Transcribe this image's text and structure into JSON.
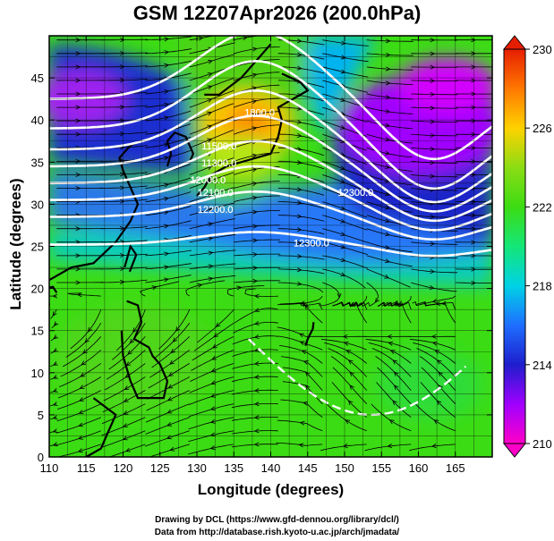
{
  "title": "GSM 12Z07Apr2026 (200.0hPa)",
  "xlabel": "Longitude (degrees)",
  "ylabel": "Latitude  (degrees)",
  "credits": {
    "line1": "Drawing by DCL (https://www.gfd-dennou.org/library/dcl/)",
    "line2": "Data from http://database.rish.kyoto-u.ac.jp/arch/jmadata/"
  },
  "map": {
    "lon_range": [
      110,
      170
    ],
    "lat_range": [
      0,
      50
    ],
    "lon_ticks": [
      110,
      115,
      120,
      125,
      130,
      135,
      140,
      145,
      150,
      155,
      160,
      165
    ],
    "lat_ticks": [
      0,
      5,
      10,
      15,
      20,
      25,
      30,
      35,
      40,
      45
    ],
    "grid": true
  },
  "colorbar": {
    "min": 210,
    "max": 230,
    "tick_labels": [
      "210",
      "214",
      "218",
      "222",
      "226",
      "230"
    ],
    "stops": [
      {
        "value": 210,
        "color": "#ff00c8"
      },
      {
        "value": 212,
        "color": "#a000ff"
      },
      {
        "value": 214,
        "color": "#1e1ecc"
      },
      {
        "value": 216,
        "color": "#1e6eff"
      },
      {
        "value": 218,
        "color": "#00d2e6"
      },
      {
        "value": 220,
        "color": "#14e678"
      },
      {
        "value": 222,
        "color": "#3cdc14"
      },
      {
        "value": 224,
        "color": "#8cdc14"
      },
      {
        "value": 226,
        "color": "#ffd200"
      },
      {
        "value": 228,
        "color": "#ff7800"
      },
      {
        "value": 230,
        "color": "#e61e00"
      }
    ]
  },
  "contour_labels": [
    {
      "text": "1800.0",
      "lon": 138.5,
      "lat": 40.5
    },
    {
      "text": "11500.0",
      "lon": 133,
      "lat": 36.5
    },
    {
      "text": "11300.0",
      "lon": 133,
      "lat": 34.5
    },
    {
      "text": "12000.0",
      "lon": 131.5,
      "lat": 32.5
    },
    {
      "text": "12100.0",
      "lon": 132.5,
      "lat": 31
    },
    {
      "text": "12200.0",
      "lon": 132.5,
      "lat": 29
    },
    {
      "text": "12300.0",
      "lon": 151.5,
      "lat": 31
    },
    {
      "text": "12300.0",
      "lon": 145.5,
      "lat": 25
    }
  ]
}
